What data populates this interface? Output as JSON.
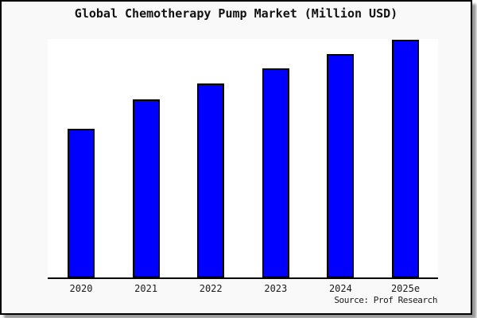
{
  "window": {
    "background_color": "#f9f9f9",
    "border_color": "#000000",
    "plot_background_color": "#ffffff"
  },
  "title": "Global Chemotherapy Pump Market (Million USD)",
  "source": "Source: Prof Research",
  "chart_data": {
    "type": "bar",
    "title": "Global Chemotherapy Pump Market (Million USD)",
    "categories": [
      "2020",
      "2021",
      "2022",
      "2023",
      "2024",
      "2025e"
    ],
    "values": [
      62.5,
      75,
      81.5,
      88,
      94,
      100
    ],
    "value_scale": "relative (no y-axis labels shown); values estimated as percent of tallest 2025e bar",
    "xlabel": "",
    "ylabel": "",
    "ylim": [
      0,
      101
    ],
    "grid": false,
    "legend": null,
    "bar_color": "#0000ff",
    "bar_border_color": "#000000",
    "axis_line_color": "#000000",
    "source_note": "Source: Prof Research"
  }
}
